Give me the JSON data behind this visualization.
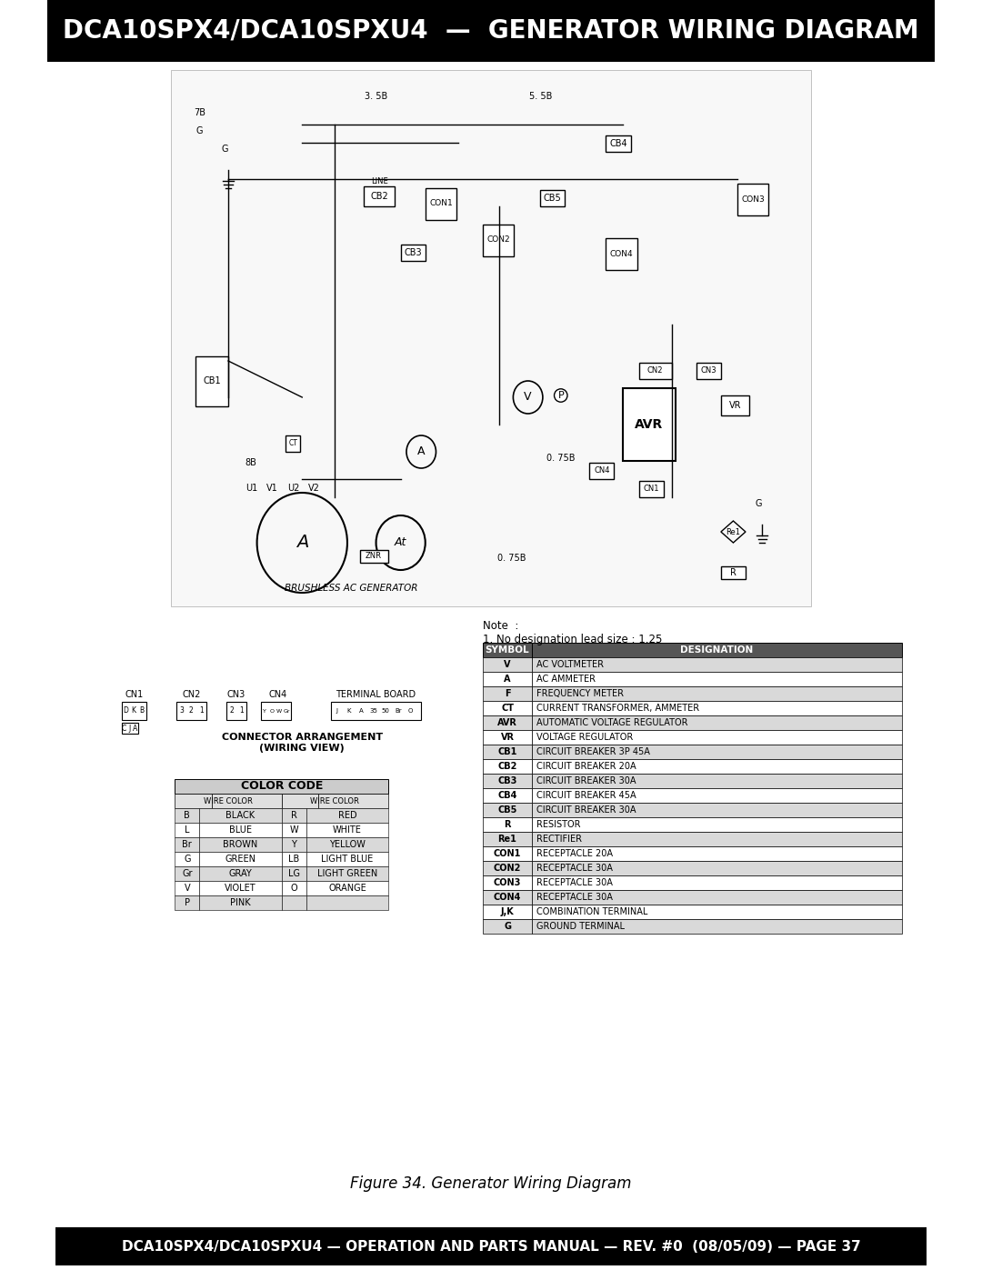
{
  "title": "DCA10SPX4/DCA10SPXU4  —  GENERATOR WIRING DIAGRAM",
  "footer": "DCA10SPX4/DCA10SPXU4 — OPERATION AND PARTS MANUAL — REV. #0  (08/05/09) — PAGE 37",
  "figure_caption": "Figure 34. Generator Wiring Diagram",
  "header_bg": "#000000",
  "header_text_color": "#ffffff",
  "footer_bg": "#000000",
  "footer_text_color": "#ffffff",
  "page_bg": "#ffffff",
  "note_text": "Note  :\n1. No designation lead size : 1.25",
  "symbol_table_header": [
    "SYMBOL",
    "DESIGNATION"
  ],
  "symbol_table_data": [
    [
      "V",
      "AC VOLTMETER"
    ],
    [
      "A",
      "AC AMMETER"
    ],
    [
      "F",
      "FREQUENCY METER"
    ],
    [
      "CT",
      "CURRENT TRANSFORMER, AMMETER"
    ],
    [
      "AVR",
      "AUTOMATIC VOLTAGE REGULATOR"
    ],
    [
      "VR",
      "VOLTAGE REGULATOR"
    ],
    [
      "CB1",
      "CIRCUIT BREAKER 3P 45A"
    ],
    [
      "CB2",
      "CIRCUIT BREAKER 20A"
    ],
    [
      "CB3",
      "CIRCUIT BREAKER 30A"
    ],
    [
      "CB4",
      "CIRCUIT BREAKER 45A"
    ],
    [
      "CB5",
      "CIRCUIT BREAKER 30A"
    ],
    [
      "R",
      "RESISTOR"
    ],
    [
      "Re1",
      "RECTIFIER"
    ],
    [
      "CON1",
      "RECEPTACLE 20A"
    ],
    [
      "CON2",
      "RECEPTACLE 30A"
    ],
    [
      "CON3",
      "RECEPTACLE 30A"
    ],
    [
      "CON4",
      "RECEPTACLE 30A"
    ],
    [
      "J,K",
      "COMBINATION TERMINAL"
    ],
    [
      "G",
      "GROUND TERMINAL"
    ]
  ],
  "color_code_data": [
    [
      "B",
      "BLACK",
      "R",
      "RED"
    ],
    [
      "L",
      "BLUE",
      "W",
      "WHITE"
    ],
    [
      "Br",
      "BROWN",
      "Y",
      "YELLOW"
    ],
    [
      "G",
      "GREEN",
      "LB",
      "LIGHT BLUE"
    ],
    [
      "Gr",
      "GRAY",
      "LG",
      "LIGHT GREEN"
    ],
    [
      "V",
      "VIOLET",
      "O",
      "ORANGE"
    ],
    [
      "P",
      "PINK",
      "",
      ""
    ]
  ],
  "connector_label": "CONNECTOR ARRANGEMENT\n(WIRING VIEW)",
  "terminal_label": "TERMINAL BOARD"
}
